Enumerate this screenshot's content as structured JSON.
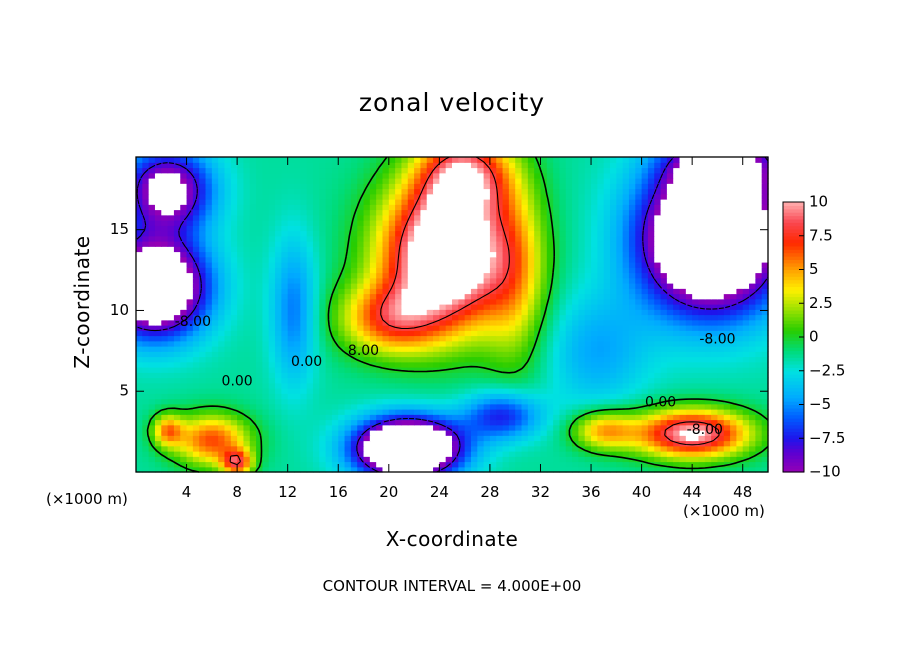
{
  "chart_data": {
    "type": "heatmap",
    "title": "zonal velocity",
    "xlabel": "X-coordinate",
    "ylabel": "Z-coordinate",
    "x_unit_left": "(×1000 m)",
    "x_unit_right": "(×1000 m)",
    "xlim": [
      0,
      50
    ],
    "ylim": [
      0,
      19.5
    ],
    "x_ticks": [
      4,
      8,
      12,
      16,
      20,
      24,
      28,
      32,
      36,
      40,
      44,
      48
    ],
    "y_ticks": [
      5,
      10,
      15
    ],
    "colorbar": {
      "range": [
        -10,
        10
      ],
      "ticks": [
        {
          "value": 10,
          "label": "10"
        },
        {
          "value": 7.5,
          "label": "7.5"
        },
        {
          "value": 5,
          "label": "5"
        },
        {
          "value": 2.5,
          "label": "2.5"
        },
        {
          "value": 0,
          "label": "0"
        },
        {
          "value": -2.5,
          "label": "−2.5"
        },
        {
          "value": -5,
          "label": "−5"
        },
        {
          "value": -7.5,
          "label": "−7.5"
        },
        {
          "value": -10,
          "label": "−10"
        }
      ]
    },
    "contour_labels": [
      {
        "text": "-8.00",
        "x": 4.5,
        "z": 9.3
      },
      {
        "text": "0.00",
        "x": 13.5,
        "z": 6.8
      },
      {
        "text": "8.00",
        "x": 18.0,
        "z": 7.5
      },
      {
        "text": "0.00",
        "x": 8.0,
        "z": 5.6
      },
      {
        "text": "0.00",
        "x": 41.5,
        "z": 4.3
      },
      {
        "text": "-8.00",
        "x": 46.0,
        "z": 8.2
      },
      {
        "text": "-8.00",
        "x": 45.0,
        "z": 2.6
      }
    ],
    "contour_interval": 4.0,
    "features": [
      {
        "type": "gauss",
        "x": 24.5,
        "z": 13.5,
        "sx": 5.0,
        "sz": 4.5,
        "amp": 16
      },
      {
        "type": "gauss",
        "x": 26.0,
        "z": 18.5,
        "sx": 3.5,
        "sz": 2.5,
        "amp": 9
      },
      {
        "type": "gauss",
        "x": 20.0,
        "z": 9.5,
        "sx": 4.0,
        "sz": 2.2,
        "amp": 7
      },
      {
        "type": "gauss",
        "x": 30.0,
        "z": 12.0,
        "sx": 2.5,
        "sz": 6.0,
        "amp": 4
      },
      {
        "type": "gauss",
        "x": 6.0,
        "z": 2.0,
        "sx": 3.0,
        "sz": 1.6,
        "amp": 8
      },
      {
        "type": "gauss",
        "x": 2.5,
        "z": 2.6,
        "sx": 1.2,
        "sz": 1.0,
        "amp": 6
      },
      {
        "type": "gauss",
        "x": 8.0,
        "z": 0.6,
        "sx": 1.2,
        "sz": 0.8,
        "amp": 8
      },
      {
        "type": "gauss",
        "x": 44.0,
        "z": 2.4,
        "sx": 4.5,
        "sz": 1.5,
        "amp": 12
      },
      {
        "type": "gauss",
        "x": 37.0,
        "z": 2.6,
        "sx": 2.5,
        "sz": 1.2,
        "amp": 6
      },
      {
        "type": "gauss",
        "x": 21.5,
        "z": 1.5,
        "sx": 4.0,
        "sz": 1.8,
        "amp": -18
      },
      {
        "type": "gauss",
        "x": 29.0,
        "z": 3.5,
        "sx": 3.0,
        "sz": 1.5,
        "amp": -6
      },
      {
        "type": "gauss",
        "x": 45.5,
        "z": 14.5,
        "sx": 5.5,
        "sz": 4.5,
        "amp": -17
      },
      {
        "type": "gauss",
        "x": 46.5,
        "z": 19.0,
        "sx": 4.0,
        "sz": 1.8,
        "amp": -8
      },
      {
        "type": "gauss",
        "x": 1.5,
        "z": 11.5,
        "sx": 4.0,
        "sz": 3.0,
        "amp": -15
      },
      {
        "type": "gauss",
        "x": 2.5,
        "z": 17.5,
        "sx": 3.5,
        "sz": 2.5,
        "amp": -10
      },
      {
        "type": "gauss",
        "x": 12.5,
        "z": 10.0,
        "sx": 1.8,
        "sz": 4.5,
        "amp": -4
      },
      {
        "type": "gauss",
        "x": 36.5,
        "z": 7.5,
        "sx": 4.0,
        "sz": 3.5,
        "amp": -3
      }
    ]
  },
  "footer": "CONTOUR INTERVAL = 4.000E+00"
}
